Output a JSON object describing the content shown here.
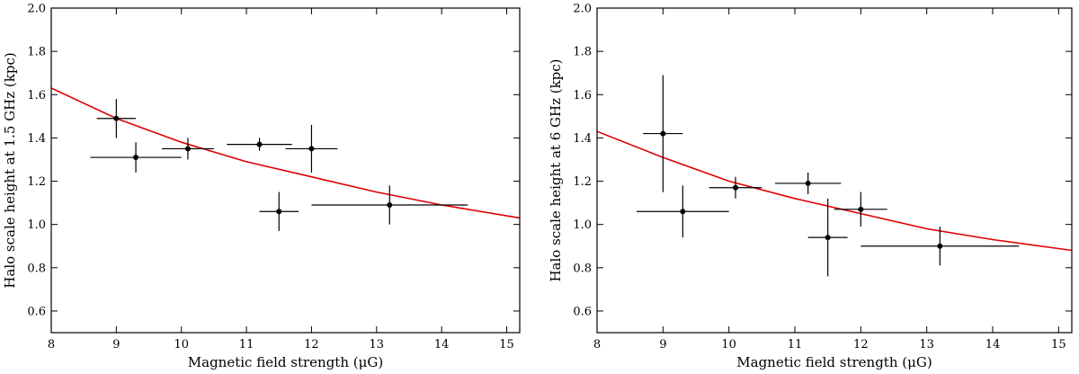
{
  "chart_data": [
    {
      "type": "scatter",
      "xlabel": "Magnetic field strength (μG)",
      "ylabel": "Halo scale height at 1.5 GHz (kpc)",
      "xlim": [
        8,
        15.2
      ],
      "ylim": [
        0.5,
        2.0
      ],
      "xticks": [
        "8",
        "9",
        "10",
        "11",
        "12",
        "13",
        "14",
        "15"
      ],
      "yticks": [
        "0.6",
        "0.8",
        "1.0",
        "1.2",
        "1.4",
        "1.6",
        "1.8",
        "2.0"
      ],
      "grid": false,
      "point_color": "#000000",
      "points": [
        {
          "x": 9.0,
          "y": 1.49,
          "xerr": 0.3,
          "yerr": 0.09
        },
        {
          "x": 9.3,
          "y": 1.31,
          "xerr": 0.7,
          "yerr": 0.07
        },
        {
          "x": 10.1,
          "y": 1.35,
          "xerr": 0.4,
          "yerr": 0.05
        },
        {
          "x": 11.2,
          "y": 1.37,
          "xerr": 0.5,
          "yerr": 0.03
        },
        {
          "x": 11.5,
          "y": 1.06,
          "xerr": 0.3,
          "yerr": 0.09
        },
        {
          "x": 12.0,
          "y": 1.35,
          "xerr": 0.4,
          "yerr": 0.11
        },
        {
          "x": 13.2,
          "y": 1.09,
          "xerr": 1.2,
          "yerr": 0.09
        }
      ],
      "fit": {
        "color": "#e00000",
        "x": [
          8.0,
          9.0,
          10.0,
          11.0,
          12.0,
          13.0,
          14.0,
          15.2
        ],
        "y": [
          1.63,
          1.49,
          1.38,
          1.29,
          1.22,
          1.15,
          1.09,
          1.03
        ]
      }
    },
    {
      "type": "scatter",
      "xlabel": "Magnetic field strength (μG)",
      "ylabel": "Halo scale height at 6 GHz (kpc)",
      "xlim": [
        8,
        15.2
      ],
      "ylim": [
        0.5,
        2.0
      ],
      "xticks": [
        "8",
        "9",
        "10",
        "11",
        "12",
        "13",
        "14",
        "15"
      ],
      "yticks": [
        "0.6",
        "0.8",
        "1.0",
        "1.2",
        "1.4",
        "1.6",
        "1.8",
        "2.0"
      ],
      "grid": false,
      "point_color": "#000000",
      "points": [
        {
          "x": 9.0,
          "y": 1.42,
          "xerr": 0.3,
          "yerr": 0.27
        },
        {
          "x": 9.3,
          "y": 1.06,
          "xerr": 0.7,
          "yerr": 0.12
        },
        {
          "x": 10.1,
          "y": 1.17,
          "xerr": 0.4,
          "yerr": 0.05
        },
        {
          "x": 11.2,
          "y": 1.19,
          "xerr": 0.5,
          "yerr": 0.05
        },
        {
          "x": 11.5,
          "y": 0.94,
          "xerr": 0.3,
          "yerr": 0.18
        },
        {
          "x": 12.0,
          "y": 1.07,
          "xerr": 0.4,
          "yerr": 0.08
        },
        {
          "x": 13.2,
          "y": 0.9,
          "xerr": 1.2,
          "yerr": 0.09
        }
      ],
      "fit": {
        "color": "#e00000",
        "x": [
          8.0,
          9.0,
          10.0,
          11.0,
          12.0,
          13.0,
          14.0,
          15.2
        ],
        "y": [
          1.43,
          1.31,
          1.2,
          1.12,
          1.05,
          0.98,
          0.93,
          0.88
        ]
      }
    }
  ]
}
